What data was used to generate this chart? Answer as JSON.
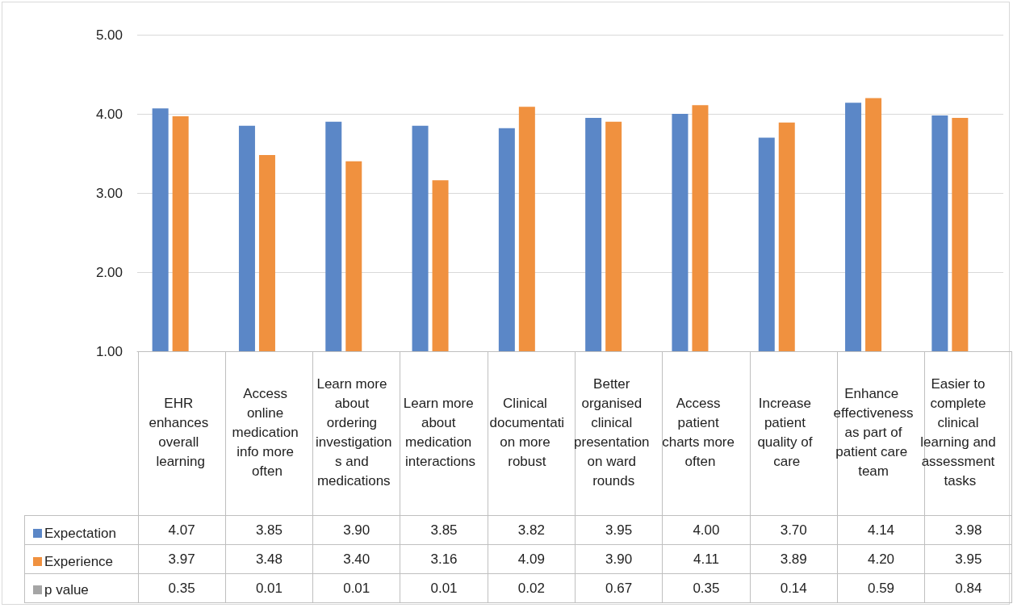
{
  "chart_data": {
    "type": "bar",
    "categories": [
      "EHR enhances overall learning",
      "Access online medication info more often",
      "Learn more about ordering investigations and medications",
      "Learn more about medication interactions",
      "Clinical documentation more robust",
      "Better organised clinical presentation on ward rounds",
      "Access patient charts more often",
      "Increase patient quality of care",
      "Enhance effectiveness as part of patient care team",
      "Easier to complete clinical learning and assessment tasks"
    ],
    "series": [
      {
        "name": "Expectation",
        "color": "#5b87c7",
        "values": [
          4.07,
          3.85,
          3.9,
          3.85,
          3.82,
          3.95,
          4.0,
          3.7,
          4.14,
          3.98
        ],
        "value_labels": [
          "4.07",
          "3.85",
          "3.90",
          "3.85",
          "3.82",
          "3.95",
          "4.00",
          "3.70",
          "4.14",
          "3.98"
        ]
      },
      {
        "name": "Experience",
        "color": "#f0913f",
        "values": [
          3.97,
          3.48,
          3.4,
          3.16,
          4.09,
          3.9,
          4.11,
          3.89,
          4.2,
          3.95
        ],
        "value_labels": [
          "3.97",
          "3.48",
          "3.40",
          "3.16",
          "4.09",
          "3.90",
          "4.11",
          "3.89",
          "4.20",
          "3.95"
        ]
      },
      {
        "name": "p value",
        "color": "#a5a5a5",
        "values": [
          null,
          null,
          null,
          null,
          null,
          null,
          null,
          null,
          null,
          null
        ],
        "value_labels": [
          "0.35",
          "0.01",
          "0.01",
          "0.01",
          "0.02",
          "0.67",
          "0.35",
          "0.14",
          "0.59",
          "0.84"
        ]
      }
    ],
    "ylim": [
      1,
      5
    ],
    "yticks": [
      {
        "value": 1,
        "label": "1.00"
      },
      {
        "value": 2,
        "label": "2.00"
      },
      {
        "value": 3,
        "label": "3.00"
      },
      {
        "value": 4,
        "label": "4.00"
      },
      {
        "value": 5,
        "label": "5.00"
      }
    ],
    "grid": "y",
    "legend": "bottom left"
  }
}
